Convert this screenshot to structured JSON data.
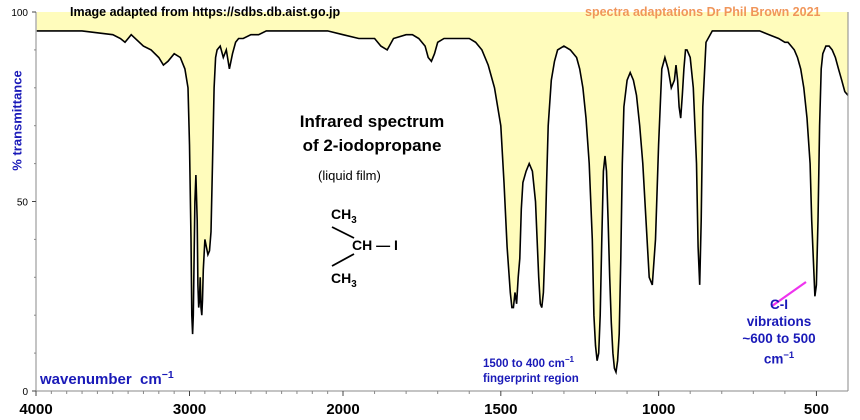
{
  "credits": {
    "source": "Image adapted from https://sdbs.db.aist.go.jp",
    "author": "spectra adaptations Dr Phil Brown 2021"
  },
  "annotations": {
    "title_line1": "Infrared spectrum",
    "title_line2": "of 2-iodopropane",
    "subtitle": "(liquid film)",
    "fingerprint_line1": "1500 to 400 cm",
    "fingerprint_sup": "−1",
    "fingerprint_line2": "fingerprint region",
    "ci_line1": "C-I",
    "ci_line2": "vibrations",
    "ci_line3": "~600 to 500",
    "ci_line4": "cm",
    "ci_sup": "−1"
  },
  "molecule": {
    "top_group": "CH",
    "top_sub": "3",
    "center": "CH",
    "bond": "—",
    "halogen": "I",
    "bottom_group": "CH",
    "bottom_sub": "3"
  },
  "colors": {
    "fill": "#fffcbc",
    "line": "#000000",
    "axis_text": "#1a1ab8",
    "credit_accent": "#f0965a",
    "pointer": "#ee33ee"
  },
  "chart_data": {
    "type": "line",
    "title": "Infrared spectrum of 2-iodopropane",
    "xlabel": "wavenumber",
    "xlabel_unit": "cm",
    "xlabel_unit_sup": "−1",
    "ylabel": "% transmittance",
    "xlim": [
      4000,
      400
    ],
    "ylim": [
      0,
      100
    ],
    "x_reversed": true,
    "x_ticks": [
      4000,
      3000,
      2000,
      1500,
      1000,
      500
    ],
    "x_tick_labels": [
      "4000",
      "3000",
      "2000",
      "1500",
      "1000",
      "500"
    ],
    "y_ticks": [
      0,
      50,
      100
    ],
    "y_tick_labels": [
      "0",
      "50",
      "100"
    ],
    "grid": false,
    "series": [
      {
        "x": [
          3995,
          3700,
          3500,
          3450,
          3420,
          3380,
          3300,
          3250,
          3200,
          3170,
          3140,
          3100,
          3060,
          3030,
          3010,
          3000,
          2990,
          2985,
          2980,
          2975,
          2970,
          2965,
          2958,
          2950,
          2945,
          2940,
          2935,
          2930,
          2925,
          2920,
          2915,
          2910,
          2905,
          2900,
          2890,
          2880,
          2870,
          2860,
          2850,
          2840,
          2830,
          2820,
          2800,
          2780,
          2760,
          2740,
          2720,
          2700,
          2680,
          2650,
          2600,
          2550,
          2500,
          2450,
          2400,
          2300,
          2200,
          2100,
          2000,
          1950,
          1900,
          1880,
          1860,
          1840,
          1800,
          1780,
          1760,
          1740,
          1730,
          1720,
          1710,
          1700,
          1680,
          1650,
          1620,
          1600,
          1580,
          1560,
          1540,
          1520,
          1500,
          1490,
          1480,
          1470,
          1465,
          1460,
          1455,
          1450,
          1445,
          1440,
          1435,
          1430,
          1420,
          1410,
          1400,
          1390,
          1385,
          1380,
          1375,
          1370,
          1365,
          1360,
          1355,
          1350,
          1340,
          1330,
          1320,
          1300,
          1280,
          1260,
          1250,
          1240,
          1230,
          1220,
          1210,
          1205,
          1200,
          1195,
          1190,
          1185,
          1180,
          1175,
          1170,
          1165,
          1160,
          1155,
          1150,
          1145,
          1140,
          1135,
          1130,
          1125,
          1120,
          1115,
          1110,
          1100,
          1090,
          1080,
          1070,
          1060,
          1050,
          1040,
          1030,
          1020,
          1010,
          1000,
          990,
          980,
          970,
          960,
          950,
          945,
          940,
          935,
          930,
          925,
          920,
          915,
          910,
          900,
          890,
          880,
          875,
          870,
          865,
          860,
          850,
          830,
          800,
          760,
          720,
          680,
          650,
          620,
          600,
          590,
          580,
          570,
          560,
          550,
          540,
          530,
          520,
          515,
          510,
          505,
          500,
          495,
          490,
          485,
          480,
          470,
          460,
          450,
          440,
          430,
          420,
          410,
          400
        ],
        "values": [
          95,
          95,
          94,
          93,
          92,
          94,
          91,
          90,
          88,
          86,
          87,
          89,
          88,
          85,
          80,
          65,
          40,
          20,
          15,
          20,
          35,
          50,
          57,
          45,
          28,
          22,
          24,
          30,
          22,
          20,
          24,
          32,
          36,
          40,
          38,
          36,
          37,
          42,
          60,
          80,
          88,
          90,
          91,
          88,
          90,
          85,
          89,
          92,
          93,
          93,
          94,
          94,
          95,
          95,
          95,
          95,
          95,
          95,
          94,
          93,
          93,
          91,
          90,
          93,
          94,
          94,
          93,
          91,
          88,
          87,
          89,
          92,
          93,
          93,
          93,
          93,
          92,
          90,
          86,
          80,
          70,
          55,
          38,
          26,
          22,
          22,
          26,
          23,
          30,
          35,
          48,
          55,
          58,
          60,
          58,
          50,
          40,
          30,
          23,
          22,
          26,
          38,
          55,
          70,
          82,
          87,
          90,
          91,
          90,
          88,
          85,
          80,
          72,
          60,
          40,
          20,
          12,
          8,
          10,
          20,
          40,
          58,
          62,
          58,
          45,
          30,
          18,
          10,
          6,
          5,
          8,
          15,
          35,
          60,
          75,
          82,
          84,
          82,
          78,
          70,
          60,
          45,
          30,
          28,
          40,
          65,
          85,
          88,
          85,
          80,
          82,
          86,
          82,
          75,
          72,
          78,
          85,
          90,
          90,
          88,
          80,
          60,
          38,
          28,
          45,
          75,
          92,
          95,
          95,
          95,
          95,
          95,
          94,
          93,
          92,
          92,
          91,
          90,
          88,
          85,
          80,
          72,
          60,
          45,
          35,
          25,
          28,
          45,
          70,
          85,
          89,
          91,
          91,
          90,
          88,
          85,
          82,
          79,
          78
        ]
      }
    ]
  }
}
